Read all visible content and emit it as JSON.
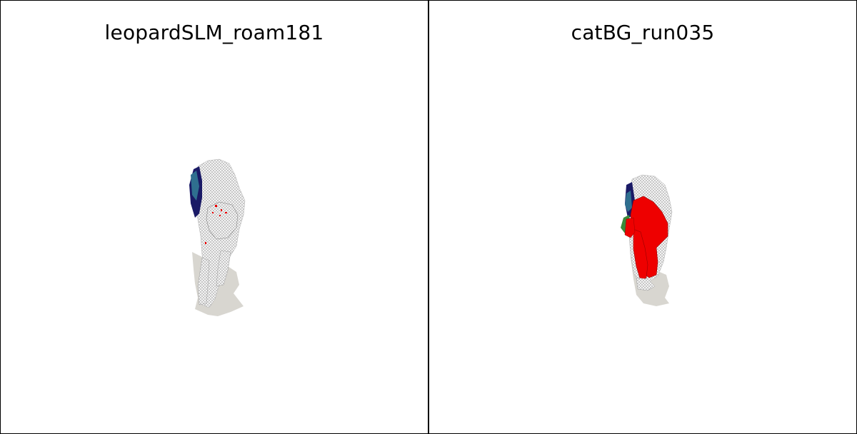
{
  "panels": [
    {
      "title": "leopardSLM_roam181",
      "render_icon": "leopard-mesh-render"
    },
    {
      "title": "catBG_run035",
      "render_icon": "cat-mesh-render"
    }
  ],
  "colors": {
    "background": "#ffffff",
    "border": "#000000",
    "mesh_base": "#f2f2f2",
    "wireframe": "#888888",
    "shadow": "#d8d6d0",
    "highlight_red": "#ee0000",
    "highlight_navy": "#1a1a66",
    "highlight_teal": "#2f6f8f",
    "highlight_green": "#3a8a3a"
  }
}
